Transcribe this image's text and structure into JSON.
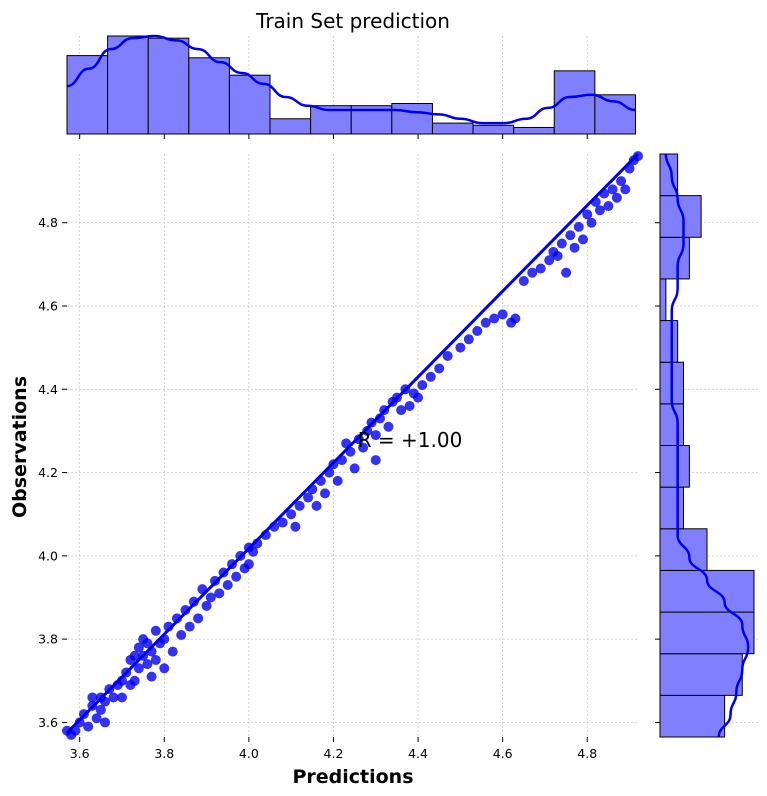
{
  "chart_data": {
    "type": "scatter",
    "title": "Train Set prediction",
    "xlabel": "Predictions",
    "ylabel": "Observations",
    "annotation": "R = +1.00",
    "xlim": [
      3.57,
      4.92
    ],
    "ylim": [
      3.565,
      4.965
    ],
    "xticks": [
      3.6,
      3.8,
      4.0,
      4.2,
      4.4,
      4.6,
      4.8
    ],
    "yticks": [
      3.6,
      3.8,
      4.0,
      4.2,
      4.4,
      4.6,
      4.8
    ],
    "xtick_labels": [
      "3.6",
      "3.8",
      "4.0",
      "4.2",
      "4.4",
      "4.6",
      "4.8"
    ],
    "ytick_labels": [
      "3.6",
      "3.8",
      "4.0",
      "4.2",
      "4.4",
      "4.6",
      "4.8"
    ],
    "grid": true,
    "regression_line": {
      "x": [
        3.57,
        4.92
      ],
      "y": [
        3.575,
        4.965
      ]
    },
    "points": [
      [
        3.57,
        3.58
      ],
      [
        3.58,
        3.57
      ],
      [
        3.59,
        3.58
      ],
      [
        3.6,
        3.6
      ],
      [
        3.61,
        3.62
      ],
      [
        3.62,
        3.59
      ],
      [
        3.63,
        3.64
      ],
      [
        3.63,
        3.66
      ],
      [
        3.64,
        3.61
      ],
      [
        3.65,
        3.63
      ],
      [
        3.65,
        3.66
      ],
      [
        3.66,
        3.65
      ],
      [
        3.66,
        3.6
      ],
      [
        3.67,
        3.68
      ],
      [
        3.68,
        3.66
      ],
      [
        3.69,
        3.69
      ],
      [
        3.7,
        3.7
      ],
      [
        3.7,
        3.66
      ],
      [
        3.71,
        3.72
      ],
      [
        3.72,
        3.69
      ],
      [
        3.72,
        3.75
      ],
      [
        3.73,
        3.76
      ],
      [
        3.73,
        3.7
      ],
      [
        3.74,
        3.78
      ],
      [
        3.74,
        3.73
      ],
      [
        3.75,
        3.8
      ],
      [
        3.75,
        3.76
      ],
      [
        3.76,
        3.74
      ],
      [
        3.76,
        3.79
      ],
      [
        3.77,
        3.71
      ],
      [
        3.77,
        3.77
      ],
      [
        3.78,
        3.82
      ],
      [
        3.78,
        3.75
      ],
      [
        3.79,
        3.79
      ],
      [
        3.8,
        3.73
      ],
      [
        3.8,
        3.8
      ],
      [
        3.81,
        3.83
      ],
      [
        3.82,
        3.77
      ],
      [
        3.83,
        3.85
      ],
      [
        3.84,
        3.81
      ],
      [
        3.85,
        3.87
      ],
      [
        3.86,
        3.83
      ],
      [
        3.87,
        3.89
      ],
      [
        3.88,
        3.85
      ],
      [
        3.89,
        3.92
      ],
      [
        3.9,
        3.88
      ],
      [
        3.91,
        3.9
      ],
      [
        3.92,
        3.94
      ],
      [
        3.93,
        3.91
      ],
      [
        3.94,
        3.96
      ],
      [
        3.95,
        3.93
      ],
      [
        3.96,
        3.98
      ],
      [
        3.97,
        3.95
      ],
      [
        3.98,
        4.0
      ],
      [
        3.99,
        3.97
      ],
      [
        4.0,
        4.02
      ],
      [
        4.0,
        3.98
      ],
      [
        4.01,
        4.01
      ],
      [
        4.02,
        4.03
      ],
      [
        4.04,
        4.05
      ],
      [
        4.06,
        4.07
      ],
      [
        4.08,
        4.08
      ],
      [
        4.1,
        4.1
      ],
      [
        4.11,
        4.07
      ],
      [
        4.12,
        4.12
      ],
      [
        4.14,
        4.14
      ],
      [
        4.15,
        4.16
      ],
      [
        4.16,
        4.12
      ],
      [
        4.17,
        4.18
      ],
      [
        4.18,
        4.15
      ],
      [
        4.19,
        4.2
      ],
      [
        4.2,
        4.22
      ],
      [
        4.21,
        4.18
      ],
      [
        4.22,
        4.23
      ],
      [
        4.23,
        4.27
      ],
      [
        4.24,
        4.25
      ],
      [
        4.25,
        4.21
      ],
      [
        4.26,
        4.28
      ],
      [
        4.27,
        4.26
      ],
      [
        4.28,
        4.3
      ],
      [
        4.29,
        4.32
      ],
      [
        4.3,
        4.23
      ],
      [
        4.3,
        4.29
      ],
      [
        4.31,
        4.33
      ],
      [
        4.32,
        4.35
      ],
      [
        4.33,
        4.31
      ],
      [
        4.34,
        4.37
      ],
      [
        4.35,
        4.38
      ],
      [
        4.36,
        4.35
      ],
      [
        4.37,
        4.4
      ],
      [
        4.38,
        4.36
      ],
      [
        4.39,
        4.39
      ],
      [
        4.4,
        4.38
      ],
      [
        4.41,
        4.41
      ],
      [
        4.43,
        4.43
      ],
      [
        4.45,
        4.45
      ],
      [
        4.47,
        4.48
      ],
      [
        4.5,
        4.5
      ],
      [
        4.52,
        4.52
      ],
      [
        4.54,
        4.54
      ],
      [
        4.56,
        4.56
      ],
      [
        4.58,
        4.57
      ],
      [
        4.6,
        4.58
      ],
      [
        4.62,
        4.56
      ],
      [
        4.63,
        4.57
      ],
      [
        4.65,
        4.66
      ],
      [
        4.67,
        4.68
      ],
      [
        4.69,
        4.69
      ],
      [
        4.71,
        4.71
      ],
      [
        4.72,
        4.73
      ],
      [
        4.73,
        4.72
      ],
      [
        4.74,
        4.75
      ],
      [
        4.75,
        4.68
      ],
      [
        4.76,
        4.77
      ],
      [
        4.77,
        4.74
      ],
      [
        4.78,
        4.79
      ],
      [
        4.79,
        4.76
      ],
      [
        4.8,
        4.82
      ],
      [
        4.81,
        4.8
      ],
      [
        4.82,
        4.85
      ],
      [
        4.83,
        4.83
      ],
      [
        4.84,
        4.87
      ],
      [
        4.85,
        4.84
      ],
      [
        4.86,
        4.88
      ],
      [
        4.87,
        4.86
      ],
      [
        4.88,
        4.9
      ],
      [
        4.89,
        4.88
      ],
      [
        4.9,
        4.93
      ],
      [
        4.91,
        4.95
      ],
      [
        4.92,
        4.96
      ]
    ],
    "top_histogram": {
      "bin_edges": [
        3.57,
        3.666,
        3.762,
        3.858,
        3.954,
        4.05,
        4.146,
        4.242,
        4.338,
        4.434,
        4.53,
        4.626,
        4.722,
        4.818,
        4.914
      ],
      "counts": [
        36,
        45,
        44,
        35,
        27,
        7,
        13,
        13,
        14,
        5,
        4,
        3,
        29,
        18
      ],
      "kde": [
        22,
        30,
        39,
        44,
        45,
        43,
        39,
        33,
        28,
        23,
        17,
        13,
        11,
        11,
        11,
        11,
        10,
        9,
        7,
        5,
        5,
        7,
        12,
        17,
        18,
        15,
        11
      ]
    },
    "right_histogram": {
      "bin_edges": [
        3.565,
        3.665,
        3.765,
        3.865,
        3.965,
        4.065,
        4.165,
        4.265,
        4.365,
        4.465,
        4.565,
        4.665,
        4.765,
        4.865,
        4.965
      ],
      "counts": [
        11,
        14,
        16,
        16,
        8,
        4,
        5,
        4,
        4,
        3,
        1,
        5,
        7,
        3
      ],
      "kde": [
        10,
        12,
        13,
        14,
        15,
        14,
        11,
        8,
        5,
        3,
        3,
        3,
        3,
        3,
        3,
        2,
        2,
        2,
        2,
        2,
        3,
        3,
        4,
        4,
        3,
        2,
        1
      ]
    },
    "colors": {
      "points": "#0000ee",
      "line": "#0000ee",
      "hist_fill": "#8080ff",
      "hist_edge": "#000000",
      "kde": "#0000ee",
      "grid": "#c0c0c0"
    }
  }
}
